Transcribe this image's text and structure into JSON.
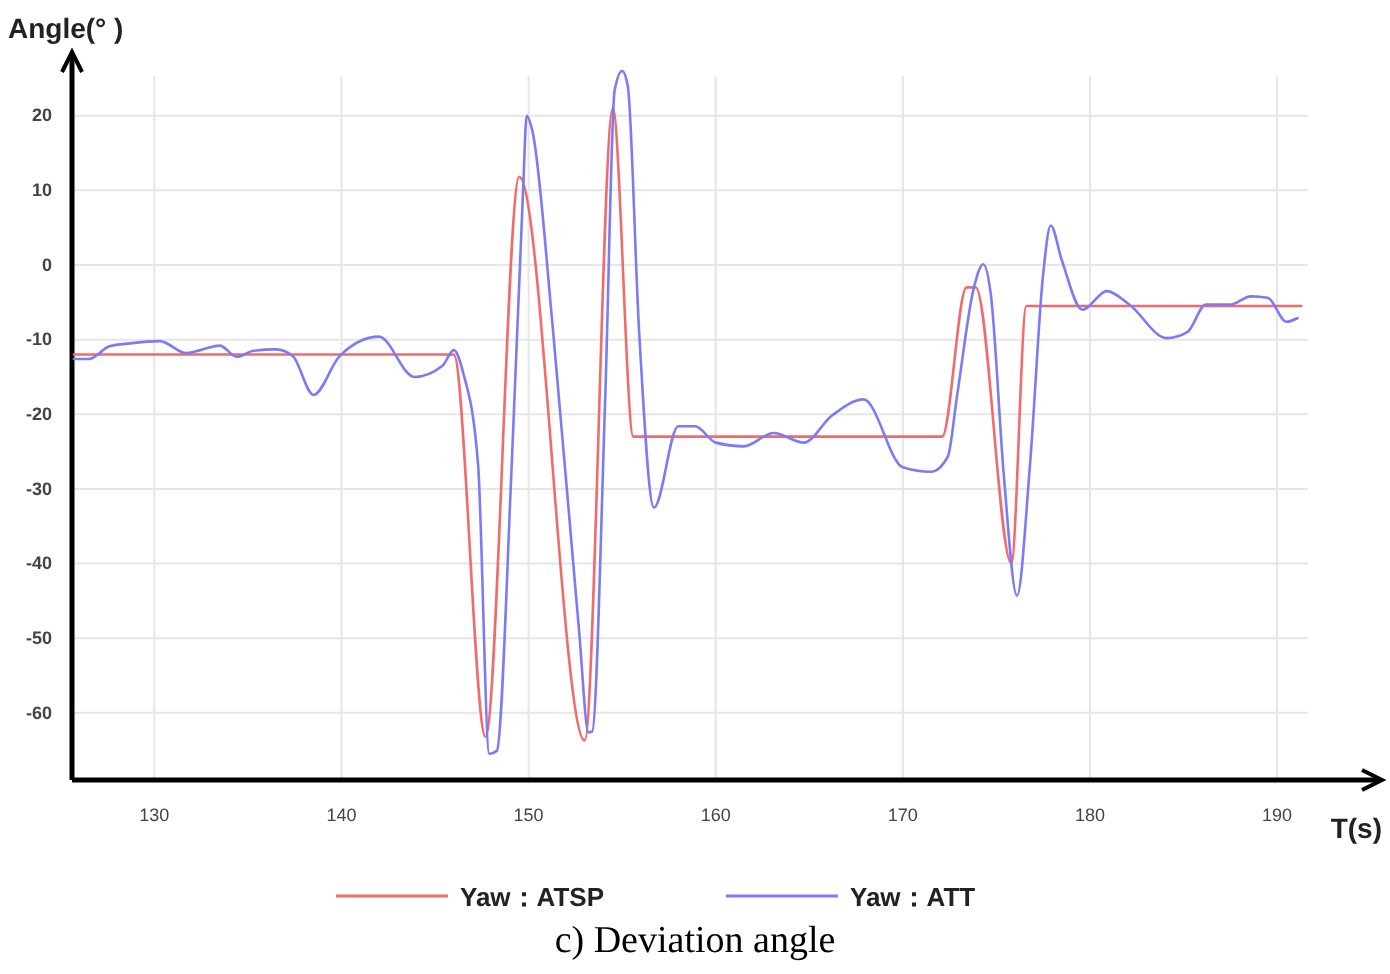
{
  "chart_data": {
    "type": "line",
    "xlabel": "T(s)",
    "ylabel": "Angle(° )",
    "annotations": [
      "c) Deviation angle"
    ],
    "xlim": [
      125.6,
      195.5
    ],
    "ylim": [
      -69,
      28
    ],
    "xticks": [
      130,
      140,
      150,
      160,
      170,
      180,
      190
    ],
    "yticks": [
      -60,
      -50,
      -40,
      -30,
      -20,
      -10,
      0,
      10,
      20
    ],
    "grid": true,
    "legend": "bottom",
    "line_style": "solid",
    "marker": "none",
    "series": [
      {
        "name": "Yaw：ATSP",
        "color": "#f26b6b",
        "x": [
          125.7,
          146.0,
          147.7,
          149.5,
          153.0,
          154.5,
          155.6,
          172.1,
          173.4,
          173.9,
          175.8,
          176.6,
          191.3
        ],
        "values": [
          -12,
          -12,
          -63.2,
          11.8,
          -63.7,
          21,
          -23,
          -23,
          -3,
          -3,
          -40,
          -5.5,
          -5.5
        ]
      },
      {
        "name": "Yaw：ATT",
        "color": "#7b7bf5",
        "x": [
          125.7,
          126.5,
          127.6,
          128.7,
          130.3,
          131.7,
          133.5,
          134.4,
          135.3,
          136.5,
          137.4,
          138.5,
          139.9,
          142.0,
          143.9,
          145.4,
          146.0,
          146.5,
          147.3,
          147.9,
          148.3,
          149.1,
          149.7,
          149.9,
          150.2,
          151.3,
          152.7,
          153.2,
          153.4,
          154.1,
          154.6,
          155.0,
          155.3,
          155.9,
          156.7,
          158.0,
          158.9,
          160.0,
          161.5,
          163.1,
          164.7,
          166.2,
          167.9,
          170.0,
          171.5,
          172.4,
          172.9,
          173.8,
          174.3,
          174.7,
          175.4,
          176.1,
          176.8,
          177.5,
          177.9,
          178.5,
          179.6,
          180.9,
          182.1,
          184.1,
          185.2,
          186.2,
          187.5,
          188.6,
          189.5,
          190.5,
          191.1
        ],
        "values": [
          -12.6,
          -12.6,
          -10.9,
          -10.5,
          -10.2,
          -11.8,
          -10.8,
          -12.3,
          -11.5,
          -11.3,
          -12.2,
          -17.4,
          -12.2,
          -9.6,
          -15,
          -13.5,
          -11.4,
          -14.4,
          -26.7,
          -65.5,
          -65.1,
          -26.7,
          9.6,
          20,
          18,
          -8.6,
          -49.1,
          -62.6,
          -62.5,
          -17.4,
          23.4,
          26,
          24,
          -8.6,
          -32.5,
          -21.6,
          -21.6,
          -23.8,
          -24.3,
          -22.5,
          -23.8,
          -20.2,
          -18,
          -27.1,
          -27.7,
          -25.7,
          -17.5,
          -3,
          0.1,
          -3.9,
          -28.3,
          -44.3,
          -26.6,
          -1.2,
          5.3,
          0.6,
          -6,
          -3.5,
          -5.3,
          -9.8,
          -9,
          -5.3,
          -5.3,
          -4.2,
          -4.4,
          -7.6,
          -7.1
        ]
      }
    ]
  }
}
